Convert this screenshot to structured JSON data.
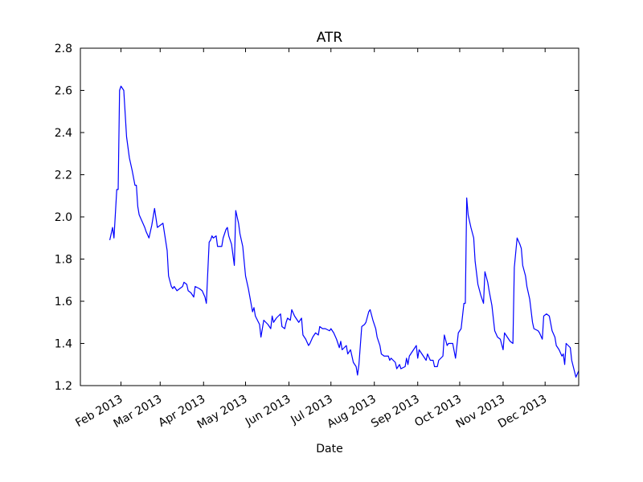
{
  "chart_data": {
    "type": "line",
    "title": "ATR",
    "x_label": "Date",
    "color": "#0000ff",
    "grid": false,
    "x": [
      24,
      26,
      27,
      29,
      30,
      31,
      32,
      34,
      36,
      38,
      40,
      42,
      43,
      44,
      45,
      49,
      50,
      52,
      54,
      55,
      56,
      58,
      62,
      65,
      66,
      68,
      69,
      70,
      72,
      74,
      76,
      77,
      79,
      80,
      82,
      84,
      85,
      88,
      90,
      92,
      93,
      95,
      96,
      97,
      98,
      100,
      101,
      104,
      105,
      107,
      108,
      109,
      111,
      113,
      114,
      116,
      117,
      119,
      120,
      121,
      123,
      126,
      127,
      128,
      131,
      132,
      134,
      137,
      139,
      140,
      141,
      143,
      146,
      147,
      149,
      150,
      151,
      153,
      154,
      156,
      158,
      159,
      161,
      162,
      164,
      166,
      167,
      169,
      171,
      173,
      174,
      176,
      178,
      181,
      182,
      184,
      186,
      188,
      189,
      190,
      193,
      194,
      196,
      197,
      198,
      200,
      201,
      202,
      204,
      206,
      207,
      209,
      210,
      212,
      214,
      215,
      217,
      218,
      220,
      223,
      224,
      225,
      228,
      229,
      231,
      232,
      235,
      236,
      237,
      238,
      240,
      243,
      244,
      245,
      247,
      250,
      251,
      253,
      255,
      256,
      258,
      259,
      262,
      263,
      265,
      266,
      269,
      271,
      273,
      275,
      277,
      278,
      279,
      280,
      282,
      284,
      285,
      287,
      289,
      291,
      292,
      294,
      295,
      297,
      299,
      301,
      303,
      305,
      306,
      308,
      310,
      312,
      313,
      315,
      317,
      318,
      319,
      321,
      322,
      324,
      326,
      327,
      330,
      331,
      333,
      334,
      336,
      338,
      340,
      342,
      343,
      345,
      347,
      348,
      349,
      350,
      353,
      354,
      357,
      359
    ],
    "values": [
      1.89,
      1.95,
      1.9,
      2.13,
      2.13,
      2.6,
      2.62,
      2.6,
      2.38,
      2.28,
      2.22,
      2.15,
      2.15,
      2.05,
      2.01,
      1.95,
      1.93,
      1.9,
      1.96,
      2.0,
      2.04,
      1.95,
      1.97,
      1.84,
      1.72,
      1.67,
      1.66,
      1.67,
      1.65,
      1.66,
      1.67,
      1.69,
      1.68,
      1.65,
      1.64,
      1.62,
      1.67,
      1.66,
      1.65,
      1.62,
      1.59,
      1.88,
      1.89,
      1.91,
      1.9,
      1.91,
      1.86,
      1.86,
      1.9,
      1.94,
      1.95,
      1.91,
      1.87,
      1.77,
      2.03,
      1.97,
      1.92,
      1.86,
      1.79,
      1.72,
      1.66,
      1.55,
      1.57,
      1.53,
      1.49,
      1.43,
      1.51,
      1.49,
      1.47,
      1.53,
      1.5,
      1.52,
      1.54,
      1.48,
      1.47,
      1.5,
      1.52,
      1.51,
      1.56,
      1.53,
      1.51,
      1.5,
      1.52,
      1.44,
      1.42,
      1.39,
      1.4,
      1.43,
      1.45,
      1.44,
      1.48,
      1.47,
      1.47,
      1.46,
      1.47,
      1.45,
      1.42,
      1.38,
      1.41,
      1.37,
      1.39,
      1.35,
      1.37,
      1.34,
      1.31,
      1.29,
      1.25,
      1.3,
      1.48,
      1.49,
      1.5,
      1.55,
      1.56,
      1.51,
      1.47,
      1.43,
      1.39,
      1.35,
      1.34,
      1.34,
      1.32,
      1.33,
      1.31,
      1.28,
      1.3,
      1.28,
      1.29,
      1.33,
      1.3,
      1.34,
      1.36,
      1.39,
      1.33,
      1.37,
      1.35,
      1.32,
      1.35,
      1.32,
      1.32,
      1.29,
      1.29,
      1.32,
      1.34,
      1.44,
      1.39,
      1.4,
      1.4,
      1.33,
      1.45,
      1.47,
      1.59,
      1.59,
      2.09,
      2.01,
      1.95,
      1.9,
      1.79,
      1.68,
      1.63,
      1.59,
      1.74,
      1.69,
      1.65,
      1.58,
      1.46,
      1.43,
      1.42,
      1.37,
      1.45,
      1.43,
      1.41,
      1.4,
      1.76,
      1.9,
      1.87,
      1.85,
      1.77,
      1.72,
      1.67,
      1.61,
      1.5,
      1.47,
      1.46,
      1.45,
      1.42,
      1.53,
      1.54,
      1.53,
      1.46,
      1.43,
      1.39,
      1.37,
      1.34,
      1.35,
      1.3,
      1.4,
      1.38,
      1.32,
      1.24,
      1.27
    ],
    "xlim": [
      3,
      359
    ],
    "ylim": [
      1.2,
      2.8
    ],
    "xticks": [
      {
        "value": 32,
        "label": "Feb 2013"
      },
      {
        "value": 60,
        "label": "Mar 2013"
      },
      {
        "value": 91,
        "label": "Apr 2013"
      },
      {
        "value": 121,
        "label": "May 2013"
      },
      {
        "value": 152,
        "label": "Jun 2013"
      },
      {
        "value": 182,
        "label": "Jul 2013"
      },
      {
        "value": 213,
        "label": "Aug 2013"
      },
      {
        "value": 244,
        "label": "Sep 2013"
      },
      {
        "value": 274,
        "label": "Oct 2013"
      },
      {
        "value": 305,
        "label": "Nov 2013"
      },
      {
        "value": 335,
        "label": "Dec 2013"
      }
    ],
    "yticks": [
      1.2,
      1.4,
      1.6,
      1.8,
      {
        "value": 2,
        "label": "2.0"
      },
      2.2,
      2.4,
      2.6,
      2.8
    ]
  }
}
